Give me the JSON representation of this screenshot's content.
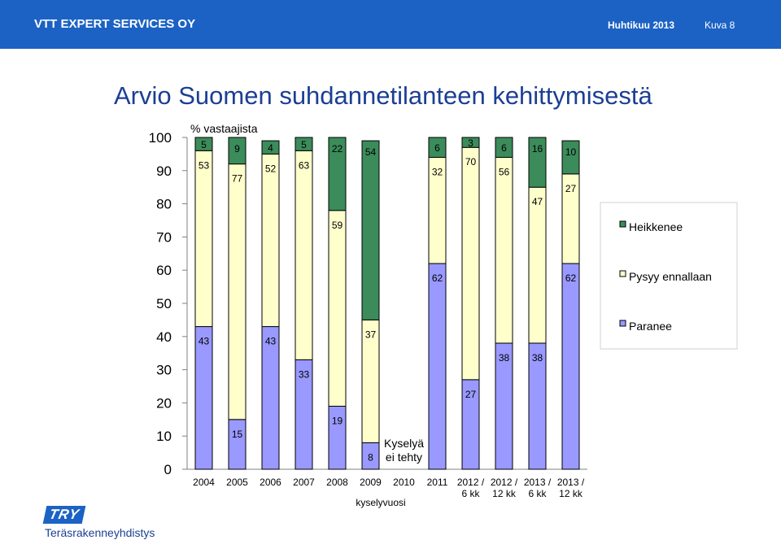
{
  "header": {
    "org": "VTT EXPERT SERVICES OY",
    "date": "Huhtikuu 2013",
    "figure": "Kuva 8"
  },
  "title": "Arvio Suomen suhdannetilanteen kehittymisestä",
  "footer": {
    "logo_mark": "TRY",
    "logo_text": "Teräsrakenneyhdistys"
  },
  "colors": {
    "header": "#1c62c4",
    "title": "#1c3f94",
    "decline": "#3b8c5a",
    "same": "#ffffcc",
    "improve": "#9999ff"
  },
  "chart_data": {
    "type": "bar",
    "stacked": true,
    "ylabel": "% vastaajista",
    "xlabel": "kyselyvuosi",
    "ylim": [
      0,
      100
    ],
    "yticks": [
      0,
      10,
      20,
      30,
      40,
      50,
      60,
      70,
      80,
      90,
      100
    ],
    "categories": [
      "2004",
      "2005",
      "2006",
      "2007",
      "2008",
      "2009",
      "2010",
      "2011",
      "2012 / 6 kk",
      "2012 / 12 kk",
      "2013 / 6 kk",
      "2013 / 12 kk"
    ],
    "series": [
      {
        "name": "Paranee",
        "values": [
          43,
          15,
          43,
          33,
          19,
          8,
          null,
          62,
          27,
          38,
          38,
          62
        ]
      },
      {
        "name": "Pysyy ennallaan",
        "values": [
          53,
          77,
          52,
          63,
          59,
          37,
          null,
          32,
          70,
          56,
          47,
          27
        ]
      },
      {
        "name": "Heikkenee",
        "values": [
          5,
          9,
          4,
          5,
          22,
          54,
          null,
          6,
          3,
          6,
          16,
          10
        ]
      }
    ],
    "legend_order": [
      "Heikkenee",
      "Pysyy ennallaan",
      "Paranee"
    ],
    "legend_position": "right",
    "annotation": "Kyselyä ei tehty"
  }
}
